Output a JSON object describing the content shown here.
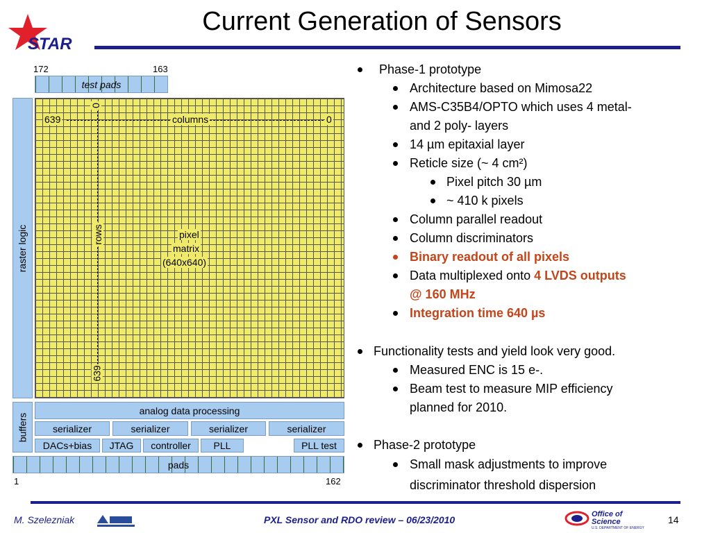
{
  "slide": {
    "title": "Current Generation of Sensors",
    "logo_text": "STAR",
    "footer_author": "M. Szelezniak",
    "footer_center": "PXL Sensor and RDO review – 06/23/2010",
    "page_number": "14",
    "office_logo_line1": "Office of",
    "office_logo_line2": "Science",
    "office_logo_sub": "U.S. DEPARTMENT OF ENERGY"
  },
  "diagram": {
    "top_left_number": "172",
    "top_right_number": "163",
    "test_pads": "test pads",
    "raster_logic": "raster logic",
    "columns_left": "639",
    "columns_label": "columns",
    "columns_right": "0",
    "rows_top": "0",
    "rows_label": "rows",
    "rows_bottom": "639",
    "pixel_matrix_line1": "pixel",
    "pixel_matrix_line2": "matrix",
    "pixel_matrix_line3": "(640x640)",
    "analog": "analog data processing",
    "buffers": "buffers",
    "serializers": [
      "serializer",
      "serializer",
      "serializer",
      "serializer"
    ],
    "dacs": "DACs+bias",
    "jtag": "JTAG",
    "controller": "controller",
    "pll": "PLL",
    "pll_test": "PLL test",
    "pads": "pads",
    "bottom_left_number": "1",
    "bottom_right_number": "162"
  },
  "bullets": {
    "b1": "Phase-1 prototype",
    "b1_1": "Architecture based on Mimosa22",
    "b1_2a": "AMS-C35B4/OPTO which uses 4 metal-",
    "b1_2b": "and 2 poly- layers",
    "b1_3": "14 µm epitaxial layer",
    "b1_4": "Reticle size (~ 4 cm²)",
    "b1_4_1": "Pixel pitch 30 µm",
    "b1_4_2": "~ 410 k pixels",
    "b1_5": "Column parallel readout",
    "b1_6": "Column discriminators",
    "b1_7": "Binary readout of all pixels",
    "b1_8_pre": "Data multiplexed onto ",
    "b1_8_red": "4 LVDS outputs",
    "b1_8_red2": "@ 160 MHz",
    "b1_9": "Integration time 640 µs",
    "b2": "Functionality tests and yield look very good.",
    "b2_1": "Measured ENC is 15 e-.",
    "b2_2a": "Beam test to measure MIP efficiency",
    "b2_2b": "planned for 2010.",
    "b3": "Phase-2 prototype",
    "b3_1a": "Small mask adjustments to improve",
    "b3_1b": "discriminator threshold dispersion"
  },
  "colors": {
    "accent_blue": "#1a1f8c",
    "highlight_red": "#c4451a",
    "matrix_yellow": "#f0ea6b",
    "block_blue": "#a8ccf0",
    "star_red": "#e0202a"
  }
}
